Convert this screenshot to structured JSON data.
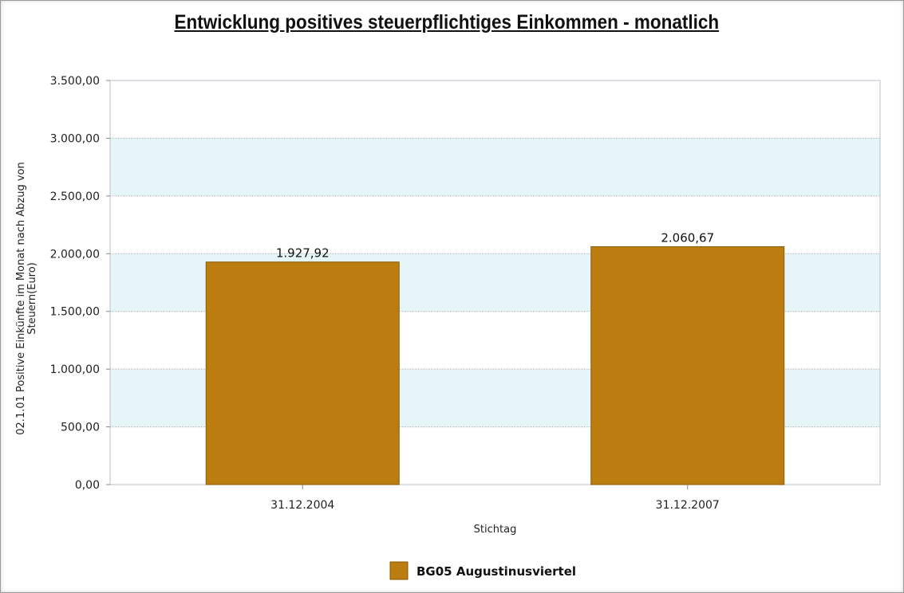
{
  "chart_data": {
    "type": "bar",
    "title": "Entwicklung positives steuerpflichtiges Einkommen - monatlich",
    "xlabel": "Stichtag",
    "ylabel_lines": [
      "02.1.01 Positive Einkünfte im Monat nach Abzug von",
      "Steuern(Euro)"
    ],
    "categories": [
      "31.12.2004",
      "31.12.2007"
    ],
    "series": [
      {
        "name": "BG05 Augustinusviertel",
        "values": [
          1927.92,
          2060.67
        ],
        "value_labels": [
          "1.927,92",
          "2.060,67"
        ],
        "color": "#bb7d10"
      }
    ],
    "ylim": [
      0,
      3500
    ],
    "yticks": [
      0,
      500,
      1000,
      1500,
      2000,
      2500,
      3000,
      3500
    ],
    "ytick_labels": [
      "0,00",
      "500,00",
      "1.000,00",
      "1.500,00",
      "2.000,00",
      "2.500,00",
      "3.000,00",
      "3.500,00"
    ],
    "grid": true,
    "band_color": "#e6f5f8",
    "legend_position": "bottom"
  }
}
